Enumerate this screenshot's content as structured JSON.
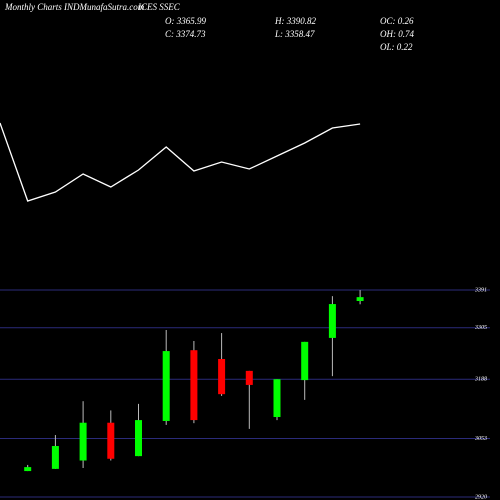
{
  "header": {
    "source": "Monthly Charts INDMunafaSutra.com",
    "symbol": "ICES SSEC",
    "stats": [
      "O: 3365.99",
      "H: 3390.82",
      "OC: 0.26",
      "C: 3374.73",
      "L: 3358.47",
      "OH: 0.74",
      "OL: 0.22"
    ]
  },
  "chart_data": [
    {
      "type": "line",
      "color": "#ffffff",
      "ylim": [
        0,
        100
      ],
      "values": [
        87,
        9,
        18,
        36,
        23,
        40,
        63,
        39,
        48,
        41,
        54,
        67,
        82,
        86
      ]
    },
    {
      "type": "candlestick",
      "up_color": "#00ff00",
      "down_color": "#ff0000",
      "grid": true,
      "grid_color": "#2b2b7a",
      "ylim": [
        2920,
        3391
      ],
      "yticks": [
        3391,
        3305,
        3188,
        3053,
        2920
      ],
      "open": [
        2979,
        2984,
        3003,
        3089,
        3013,
        3093,
        3254,
        3234,
        3207,
        3102,
        3186,
        3282,
        3365.99
      ],
      "high": [
        2993,
        3061,
        3138,
        3117,
        3132,
        3300,
        3275,
        3293,
        3207,
        3188,
        3273,
        3377,
        3390.82
      ],
      "low": [
        2979,
        2984,
        2986,
        3003,
        3013,
        3084,
        3088,
        3150,
        3075,
        3095,
        3141,
        3195,
        3358.47
      ],
      "close": [
        2988,
        3036,
        3089,
        3007,
        3095,
        3252,
        3095,
        3154,
        3175,
        3188,
        3273,
        3359,
        3374.73
      ]
    }
  ]
}
